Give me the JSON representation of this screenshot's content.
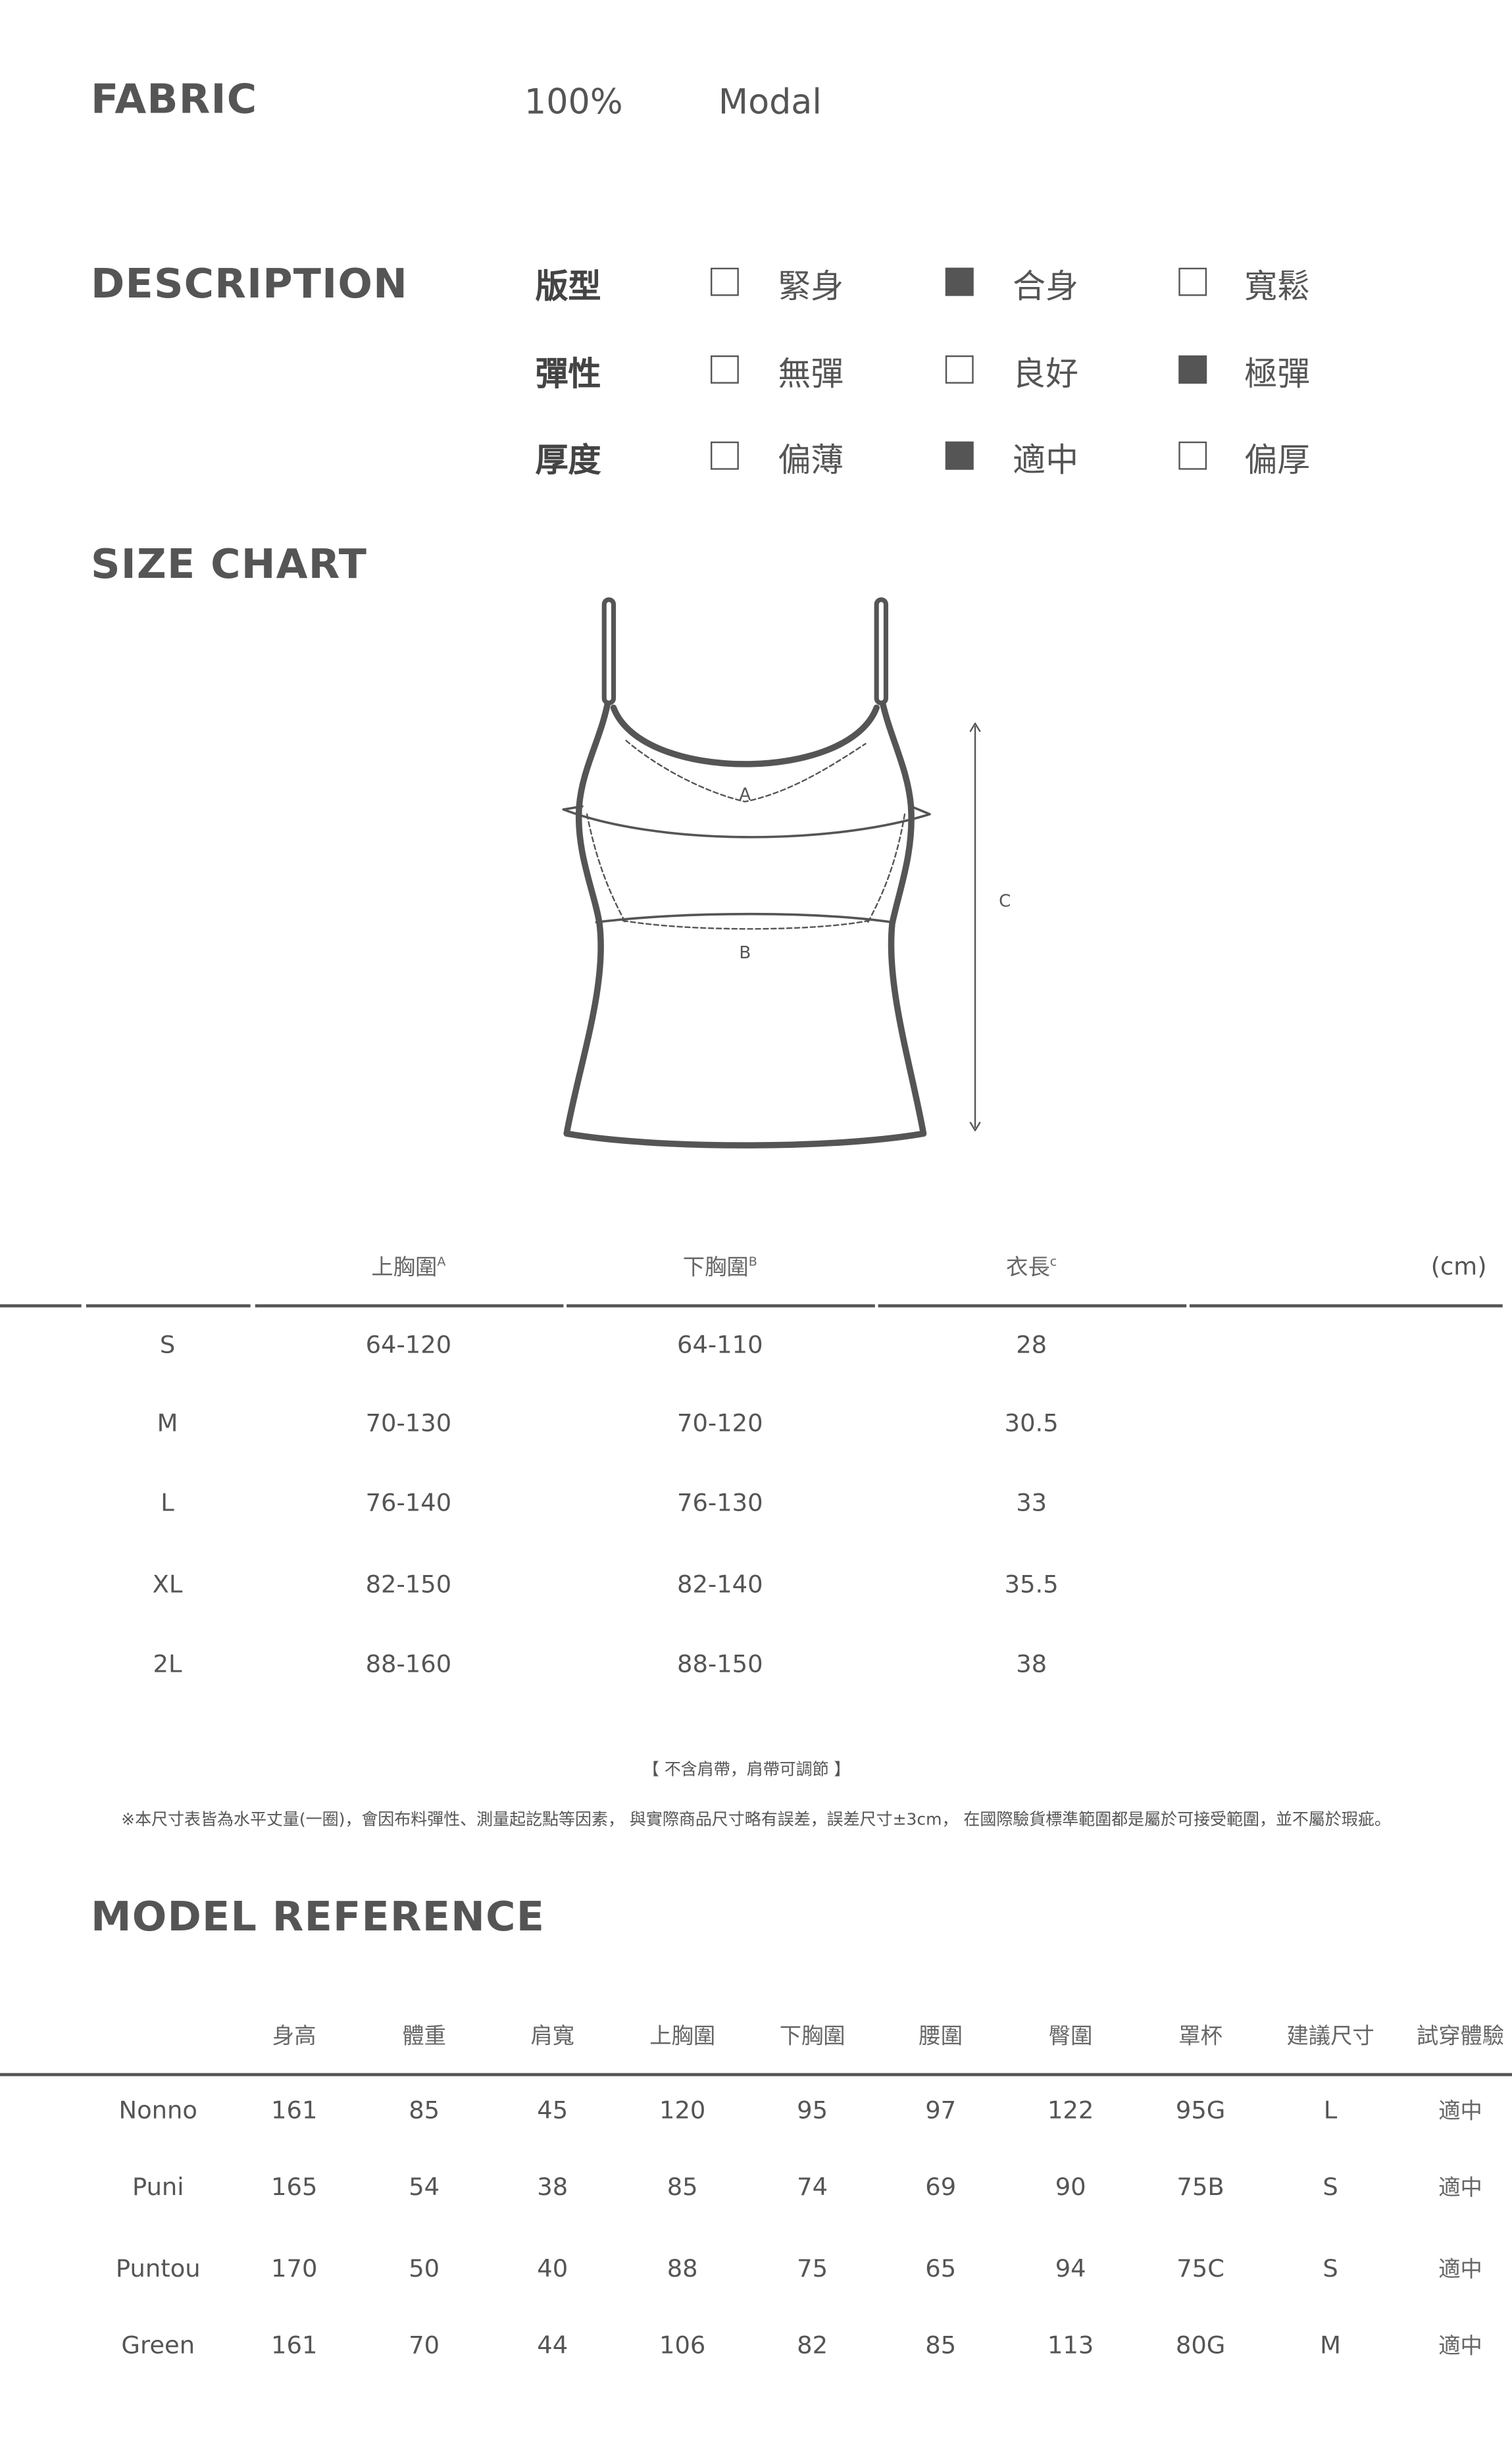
{
  "fabric": {
    "title": "FABRIC",
    "percent": "100%",
    "material": "Modal"
  },
  "description": {
    "title": "DESCRIPTION",
    "rows": [
      {
        "label": "版型",
        "options": [
          {
            "text": "緊身",
            "checked": false
          },
          {
            "text": "合身",
            "checked": true
          },
          {
            "text": "寬鬆",
            "checked": false
          }
        ]
      },
      {
        "label": "彈性",
        "options": [
          {
            "text": "無彈",
            "checked": false
          },
          {
            "text": "良好",
            "checked": false
          },
          {
            "text": "極彈",
            "checked": true
          }
        ]
      },
      {
        "label": "厚度",
        "options": [
          {
            "text": "偏薄",
            "checked": false
          },
          {
            "text": "適中",
            "checked": true
          },
          {
            "text": "偏厚",
            "checked": false
          }
        ]
      }
    ]
  },
  "size_chart": {
    "title": "SIZE CHART",
    "diagram_labels": {
      "a": "A",
      "b": "B",
      "c": "C"
    },
    "headers": [
      "上胸圍",
      "下胸圍",
      "衣長"
    ],
    "header_sup": [
      "A",
      "B",
      "c"
    ],
    "unit": "(cm)",
    "rows": [
      [
        "S",
        "64-120",
        "64-110",
        "28"
      ],
      [
        "M",
        "70-130",
        "70-120",
        "30.5"
      ],
      [
        "L",
        "76-140",
        "76-130",
        "33"
      ],
      [
        "XL",
        "82-150",
        "82-140",
        "35.5"
      ],
      [
        "2L",
        "88-160",
        "88-150",
        "38"
      ]
    ],
    "note1": "【 不含肩帶，肩帶可調節 】",
    "note2": "※本尺寸表皆為水平丈量(一圈)，會因布料彈性、測量起訖點等因素， 與實際商品尺寸略有誤差，誤差尺寸±3cm， 在國際驗貨標準範圍都是屬於可接受範圍，並不屬於瑕疵。"
  },
  "model_reference": {
    "title": "MODEL REFERENCE",
    "headers": [
      "身高",
      "體重",
      "肩寬",
      "上胸圍",
      "下胸圍",
      "腰圍",
      "臀圍",
      "罩杯",
      "建議尺寸",
      "試穿體驗"
    ],
    "rows": [
      [
        "Nonno",
        "161",
        "85",
        "45",
        "120",
        "95",
        "97",
        "122",
        "95G",
        "L",
        "適中"
      ],
      [
        "Puni",
        "165",
        "54",
        "38",
        "85",
        "74",
        "69",
        "90",
        "75B",
        "S",
        "適中"
      ],
      [
        "Puntou",
        "170",
        "50",
        "40",
        "88",
        "75",
        "65",
        "94",
        "75C",
        "S",
        "適中"
      ],
      [
        "Green",
        "161",
        "70",
        "44",
        "106",
        "82",
        "85",
        "113",
        "80G",
        "M",
        "適中"
      ]
    ]
  }
}
